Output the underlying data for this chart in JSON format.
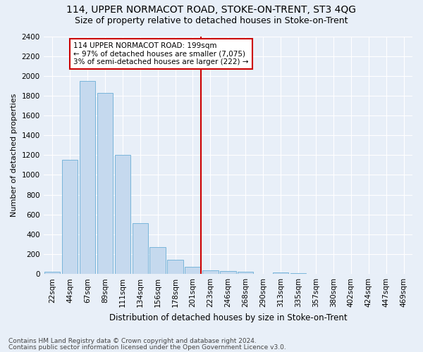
{
  "title1": "114, UPPER NORMACOT ROAD, STOKE-ON-TRENT, ST3 4QG",
  "title2": "Size of property relative to detached houses in Stoke-on-Trent",
  "xlabel": "Distribution of detached houses by size in Stoke-on-Trent",
  "ylabel": "Number of detached properties",
  "footer1": "Contains HM Land Registry data © Crown copyright and database right 2024.",
  "footer2": "Contains public sector information licensed under the Open Government Licence v3.0.",
  "bar_labels": [
    "22sqm",
    "44sqm",
    "67sqm",
    "89sqm",
    "111sqm",
    "134sqm",
    "156sqm",
    "178sqm",
    "201sqm",
    "223sqm",
    "246sqm",
    "268sqm",
    "290sqm",
    "313sqm",
    "335sqm",
    "357sqm",
    "380sqm",
    "402sqm",
    "424sqm",
    "447sqm",
    "469sqm"
  ],
  "bar_values": [
    20,
    1150,
    1950,
    1825,
    1200,
    510,
    270,
    145,
    75,
    35,
    30,
    25,
    0,
    15,
    5,
    3,
    0,
    3,
    0,
    0,
    3
  ],
  "bar_color": "#c5d9ee",
  "bar_edge_color": "#6aaed6",
  "annotation_text1": "114 UPPER NORMACOT ROAD: 199sqm",
  "annotation_text2": "← 97% of detached houses are smaller (7,075)",
  "annotation_text3": "3% of semi-detached houses are larger (222) →",
  "annotation_box_color": "white",
  "annotation_box_edge": "#cc0000",
  "vline_color": "#cc0000",
  "vline_index": 8,
  "ylim": [
    0,
    2400
  ],
  "yticks": [
    0,
    200,
    400,
    600,
    800,
    1000,
    1200,
    1400,
    1600,
    1800,
    2000,
    2200,
    2400
  ],
  "bg_color": "#e8eff8",
  "plot_bg_color": "#e8eff8",
  "grid_color": "white",
  "title1_fontsize": 10,
  "title2_fontsize": 9,
  "xlabel_fontsize": 8.5,
  "ylabel_fontsize": 8,
  "tick_fontsize": 7.5,
  "annotation_fontsize": 7.5,
  "footer_fontsize": 6.5
}
